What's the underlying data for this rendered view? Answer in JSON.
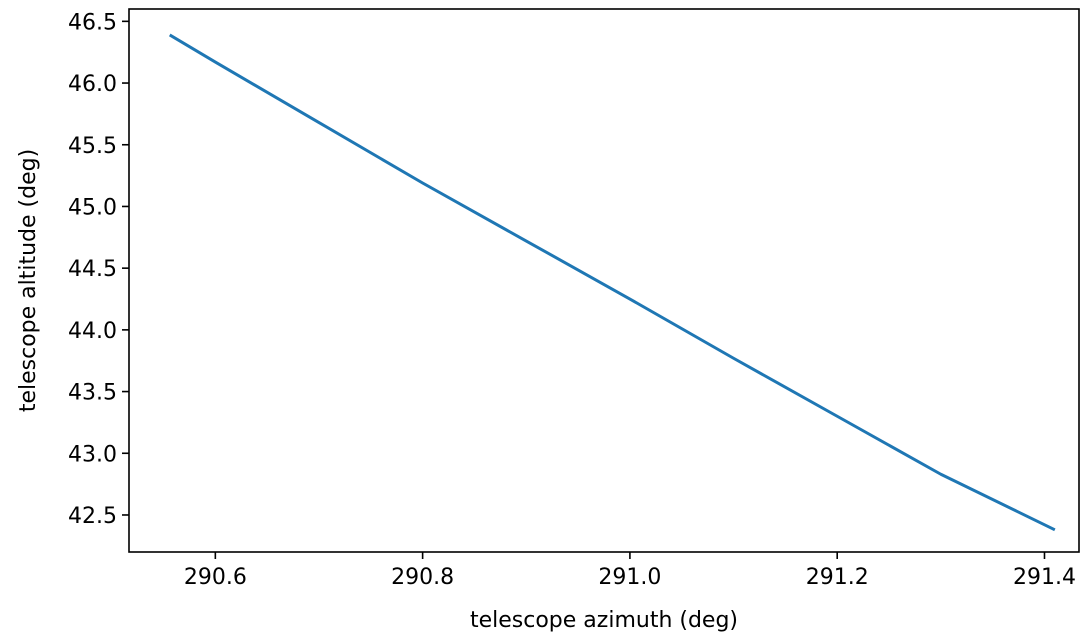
{
  "chart_data": {
    "type": "line",
    "title": "",
    "xlabel": "telescope azimuth (deg)",
    "ylabel": "telescope altitude (deg)",
    "xlim": [
      290.5167,
      291.4333
    ],
    "ylim": [
      42.2,
      46.6
    ],
    "xticks": [
      290.6,
      290.8,
      291.0,
      291.2,
      291.4
    ],
    "xtick_labels": [
      "290.6",
      "290.8",
      "291.0",
      "291.2",
      "291.4"
    ],
    "yticks": [
      42.5,
      43.0,
      43.5,
      44.0,
      44.5,
      45.0,
      45.5,
      46.0,
      46.5
    ],
    "ytick_labels": [
      "42.5",
      "43.0",
      "43.5",
      "44.0",
      "44.5",
      "45.0",
      "45.5",
      "46.0",
      "46.5"
    ],
    "grid": false,
    "series": [
      {
        "color": "#1f77b4",
        "x": [
          290.556,
          290.6,
          290.7,
          290.8,
          290.9,
          291.0,
          291.1,
          291.2,
          291.3,
          291.41
        ],
        "y": [
          46.39,
          46.17,
          45.68,
          45.19,
          44.72,
          44.25,
          43.77,
          43.3,
          42.83,
          42.38
        ]
      }
    ]
  }
}
